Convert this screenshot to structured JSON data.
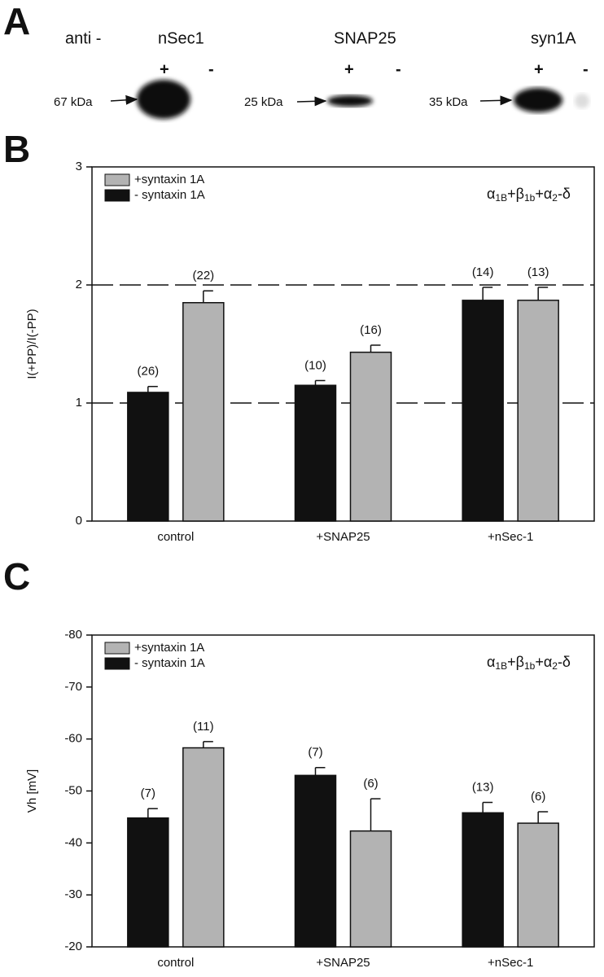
{
  "panel_a": {
    "label": "A",
    "prefix": "anti -",
    "blots": [
      {
        "name": "nSec1",
        "plus": "+",
        "minus": "-",
        "marker": "67 kDa"
      },
      {
        "name": "SNAP25",
        "plus": "+",
        "minus": "-",
        "marker": "25 kDa"
      },
      {
        "name": "syn1A",
        "plus": "+",
        "minus": "-",
        "marker": "35 kDa"
      }
    ]
  },
  "chart_data": [
    {
      "type": "bar",
      "panel_label": "B",
      "y_label": "I(+PP)/I(-PP)",
      "categories": [
        "control",
        "+SNAP25",
        "+nSec-1"
      ],
      "ylim": [
        0,
        3
      ],
      "yticks": [
        0,
        1,
        2,
        3
      ],
      "ref_lines": [
        1,
        2
      ],
      "annotation_parts": [
        "α",
        "1B",
        "+β",
        "1b",
        "+α",
        "2",
        "-δ"
      ],
      "series": [
        {
          "name": "- syntaxin 1A",
          "color": "#111111",
          "values": [
            1.09,
            1.15,
            1.87
          ],
          "errors": [
            0.05,
            0.04,
            0.11
          ],
          "n_labels": [
            "(26)",
            "(10)",
            "(14)"
          ]
        },
        {
          "name": "+syntaxin 1A",
          "color": "#b3b3b3",
          "values": [
            1.85,
            1.43,
            1.87
          ],
          "errors": [
            0.1,
            0.06,
            0.11
          ],
          "n_labels": [
            "(22)",
            "(16)",
            "(13)"
          ]
        }
      ]
    },
    {
      "type": "bar",
      "panel_label": "C",
      "y_label": "Vh [mV]",
      "categories": [
        "control",
        "+SNAP25",
        "+nSec-1"
      ],
      "ylim": [
        -20,
        -80
      ],
      "yticks": [
        -20,
        -30,
        -40,
        -50,
        -60,
        -70,
        -80
      ],
      "annotation_parts": [
        "α",
        "1B",
        "+β",
        "1b",
        "+α",
        "2",
        "-δ"
      ],
      "series": [
        {
          "name": "- syntaxin 1A",
          "color": "#111111",
          "values": [
            -44.8,
            -53,
            -45.8
          ],
          "errors": [
            1.8,
            1.5,
            2
          ],
          "n_labels": [
            "(7)",
            "(7)",
            "(13)"
          ]
        },
        {
          "name": "+syntaxin 1A",
          "color": "#b3b3b3",
          "values": [
            -58.3,
            -42.3,
            -43.8
          ],
          "errors": [
            1.2,
            6.2,
            2.2
          ],
          "n_labels": [
            "(11)",
            "(6)",
            "(6)"
          ]
        }
      ]
    }
  ]
}
